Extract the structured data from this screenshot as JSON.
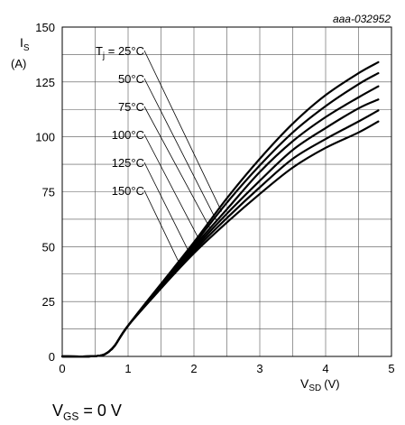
{
  "chart_data": {
    "type": "line",
    "annotation": "aaa-032952",
    "xlabel": {
      "main": "V",
      "sub": "SD",
      "unit": "(V)"
    },
    "ylabel": {
      "main": "I",
      "sub": "S",
      "unit": "(A)"
    },
    "xlim": [
      0,
      5
    ],
    "ylim": [
      0,
      150
    ],
    "x_ticks": [
      0,
      1,
      2,
      3,
      4,
      5
    ],
    "y_ticks": [
      0,
      25,
      50,
      75,
      100,
      125,
      150
    ],
    "x_ticks_text": [
      "0",
      "1",
      "2",
      "3",
      "4",
      "5"
    ],
    "y_ticks_text": [
      "0",
      "25",
      "50",
      "75",
      "100",
      "125",
      "150"
    ],
    "grid": true,
    "series": [
      {
        "name": "T_j = 25°C",
        "label_main": "T",
        "label_sub": "j",
        "label_rest": " = 25°C",
        "x": [
          0,
          0.4,
          0.6,
          0.7,
          0.8,
          1.0,
          1.5,
          2.0,
          2.5,
          3.0,
          3.5,
          4.0,
          4.5,
          4.8
        ],
        "y": [
          0,
          0,
          0.5,
          2,
          5,
          14,
          33,
          52,
          72,
          90,
          106,
          119,
          129,
          134
        ]
      },
      {
        "name": "50°C",
        "label_main": "50°C",
        "x": [
          0,
          0.4,
          0.6,
          0.7,
          0.8,
          1.0,
          1.5,
          2.0,
          2.5,
          3.0,
          3.5,
          4.0,
          4.5,
          4.8
        ],
        "y": [
          0,
          0,
          0.5,
          2,
          5,
          14,
          33,
          51,
          70,
          87,
          102,
          114,
          124,
          129
        ]
      },
      {
        "name": "75°C",
        "label_main": "75°C",
        "x": [
          0,
          0.4,
          0.6,
          0.7,
          0.8,
          1.0,
          1.5,
          2.0,
          2.5,
          3.0,
          3.5,
          4.0,
          4.5,
          4.8
        ],
        "y": [
          0,
          0,
          0.5,
          2,
          5,
          14,
          32,
          50,
          67,
          84,
          98,
          109,
          118,
          123
        ]
      },
      {
        "name": "100°C",
        "label_main": "100°C",
        "x": [
          0,
          0.4,
          0.6,
          0.7,
          0.8,
          1.0,
          1.5,
          2.0,
          2.5,
          3.0,
          3.5,
          4.0,
          4.5,
          4.8
        ],
        "y": [
          0,
          0,
          0.5,
          2,
          5,
          14,
          32,
          49,
          65,
          80,
          94,
          104,
          113,
          117
        ]
      },
      {
        "name": "125°C",
        "label_main": "125°C",
        "x": [
          0,
          0.4,
          0.6,
          0.7,
          0.8,
          1.0,
          1.5,
          2.0,
          2.5,
          3.0,
          3.5,
          4.0,
          4.5,
          4.8
        ],
        "y": [
          0,
          0,
          0.5,
          2,
          5,
          14,
          31,
          48,
          63,
          77,
          90,
          99,
          107,
          112
        ]
      },
      {
        "name": "150°C",
        "label_main": "150°C",
        "x": [
          0,
          0.4,
          0.6,
          0.7,
          0.8,
          1.0,
          1.5,
          2.0,
          2.5,
          3.0,
          3.5,
          4.0,
          4.5,
          4.8
        ],
        "y": [
          0,
          0,
          0.5,
          2,
          5,
          14,
          31,
          47,
          61,
          74,
          86,
          95,
          102,
          107
        ]
      }
    ],
    "leader_targets": [
      {
        "x": 2.42,
        "y": 66
      },
      {
        "x": 2.34,
        "y": 62
      },
      {
        "x": 2.25,
        "y": 58
      },
      {
        "x": 2.1,
        "y": 52
      },
      {
        "x": 1.95,
        "y": 46
      },
      {
        "x": 1.8,
        "y": 41
      }
    ],
    "footnote": {
      "main": "V",
      "sub": "GS",
      "rest": " = 0 V"
    }
  }
}
